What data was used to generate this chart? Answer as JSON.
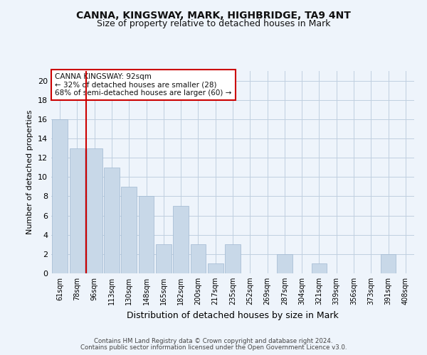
{
  "title": "CANNA, KINGSWAY, MARK, HIGHBRIDGE, TA9 4NT",
  "subtitle": "Size of property relative to detached houses in Mark",
  "xlabel": "Distribution of detached houses by size in Mark",
  "ylabel": "Number of detached properties",
  "categories": [
    "61sqm",
    "78sqm",
    "96sqm",
    "113sqm",
    "130sqm",
    "148sqm",
    "165sqm",
    "182sqm",
    "200sqm",
    "217sqm",
    "235sqm",
    "252sqm",
    "269sqm",
    "287sqm",
    "304sqm",
    "321sqm",
    "339sqm",
    "356sqm",
    "373sqm",
    "391sqm",
    "408sqm"
  ],
  "values": [
    16,
    13,
    13,
    11,
    9,
    8,
    3,
    7,
    3,
    1,
    3,
    0,
    0,
    2,
    0,
    1,
    0,
    0,
    0,
    2,
    0
  ],
  "bar_color": "#c8d8e8",
  "bar_edge_color": "#a0b8d0",
  "property_index": 1.5,
  "annotation_text": "CANNA KINGSWAY: 92sqm\n← 32% of detached houses are smaller (28)\n68% of semi-detached houses are larger (60) →",
  "vline_color": "#cc0000",
  "annotation_box_color": "#cc0000",
  "ylim": [
    0,
    21
  ],
  "yticks": [
    0,
    2,
    4,
    6,
    8,
    10,
    12,
    14,
    16,
    18,
    20
  ],
  "footer1": "Contains HM Land Registry data © Crown copyright and database right 2024.",
  "footer2": "Contains public sector information licensed under the Open Government Licence v3.0.",
  "bg_color": "#eef4fb",
  "plot_bg_color": "#eef4fb",
  "grid_color": "#c0cfe0",
  "title_fontsize": 10,
  "subtitle_fontsize": 9
}
